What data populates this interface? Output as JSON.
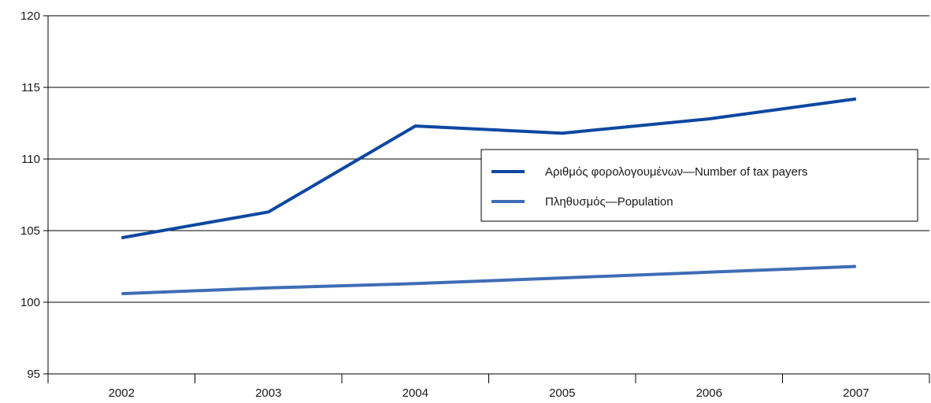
{
  "chart_data": {
    "type": "line",
    "title": "",
    "xlabel": "",
    "ylabel": "",
    "categories": [
      "2002",
      "2003",
      "2004",
      "2005",
      "2006",
      "2007"
    ],
    "ylim": [
      95,
      120
    ],
    "yticks": [
      95,
      100,
      105,
      110,
      115,
      120
    ],
    "grid": "horizontal",
    "legend_position": "right",
    "series": [
      {
        "name": "Αριθμός φορολογουμένων—Number of tax payers",
        "color": "#0d47a1",
        "values": [
          104.5,
          106.3,
          112.3,
          111.8,
          112.8,
          114.2
        ]
      },
      {
        "name": "Πληθυσμός—Population",
        "color": "#3f6db5",
        "values": [
          100.6,
          101.0,
          101.3,
          101.7,
          102.1,
          102.5
        ]
      }
    ]
  }
}
